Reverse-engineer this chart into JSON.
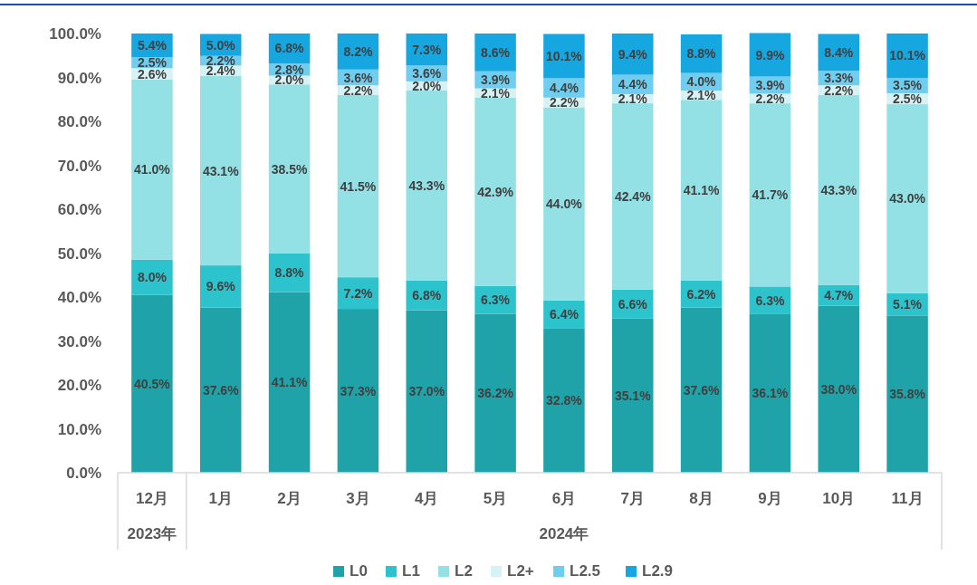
{
  "chart_data": {
    "type": "bar",
    "stacked": true,
    "legend": "bottom",
    "categories": [
      "12月",
      "1月",
      "2月",
      "3月",
      "4月",
      "5月",
      "6月",
      "7月",
      "8月",
      "9月",
      "10月",
      "11月"
    ],
    "annotations": [
      "2023年",
      "2024年"
    ],
    "ylim": [
      0,
      100
    ],
    "yticks": [
      {
        "value": 0,
        "label": "0.0%"
      },
      {
        "value": 10,
        "label": "10.0%"
      },
      {
        "value": 20,
        "label": "20.0%"
      },
      {
        "value": 30,
        "label": "30.0%"
      },
      {
        "value": 40,
        "label": "40.0%"
      },
      {
        "value": 50,
        "label": "50.0%"
      },
      {
        "value": 60,
        "label": "60.0%"
      },
      {
        "value": 70,
        "label": "70.0%"
      },
      {
        "value": 80,
        "label": "80.0%"
      },
      {
        "value": 90,
        "label": "90.0%"
      },
      {
        "value": 100,
        "label": "100.0%"
      }
    ],
    "series": [
      {
        "name": "L0",
        "color": "#1fa3a8",
        "values": [
          40.5,
          37.6,
          41.1,
          37.3,
          37.0,
          36.2,
          32.8,
          35.1,
          37.6,
          36.1,
          38.0,
          35.8
        ],
        "value_labels": [
          "40.5%",
          "37.6%",
          "41.1%",
          "37.3%",
          "37.0%",
          "36.2%",
          "32.8%",
          "35.1%",
          "37.6%",
          "36.1%",
          "38.0%",
          "35.8%"
        ]
      },
      {
        "name": "L1",
        "color": "#2cc3cc",
        "values": [
          8.0,
          9.6,
          8.8,
          7.2,
          6.8,
          6.3,
          6.4,
          6.6,
          6.2,
          6.3,
          4.7,
          5.1
        ],
        "value_labels": [
          "8.0%",
          "9.6%",
          "8.8%",
          "7.2%",
          "6.8%",
          "6.3%",
          "6.4%",
          "6.6%",
          "6.2%",
          "6.3%",
          "4.7%",
          "5.1%"
        ]
      },
      {
        "name": "L2",
        "color": "#93e1e5",
        "values": [
          41.0,
          43.1,
          38.5,
          41.5,
          43.3,
          42.9,
          44.0,
          42.4,
          41.1,
          41.7,
          43.3,
          43.0
        ],
        "value_labels": [
          "41.0%",
          "43.1%",
          "38.5%",
          "41.5%",
          "43.3%",
          "42.9%",
          "44.0%",
          "42.4%",
          "41.1%",
          "41.7%",
          "43.3%",
          "43.0%"
        ]
      },
      {
        "name": "L2+",
        "color": "#d6f2f4",
        "values": [
          2.6,
          2.4,
          2.0,
          2.2,
          2.0,
          2.1,
          2.2,
          2.1,
          2.1,
          2.2,
          2.2,
          2.5
        ],
        "value_labels": [
          "2.6%",
          "2.4%",
          "2.0%",
          "2.2%",
          "2.0%",
          "2.1%",
          "2.2%",
          "2.1%",
          "2.1%",
          "2.2%",
          "2.2%",
          "2.5%"
        ]
      },
      {
        "name": "L2.5",
        "color": "#6fcdf0",
        "values": [
          2.5,
          2.2,
          2.8,
          3.6,
          3.6,
          3.9,
          4.4,
          4.4,
          4.0,
          3.9,
          3.3,
          3.5
        ],
        "value_labels": [
          "2.5%",
          "2.2%",
          "2.8%",
          "3.6%",
          "3.6%",
          "3.9%",
          "4.4%",
          "4.4%",
          "4.0%",
          "3.9%",
          "3.3%",
          "3.5%"
        ]
      },
      {
        "name": "L2.9",
        "color": "#16a6e0",
        "values": [
          5.4,
          5.0,
          6.8,
          8.2,
          7.3,
          8.6,
          10.1,
          9.4,
          8.8,
          9.9,
          8.4,
          10.1
        ],
        "value_labels": [
          "5.4%",
          "5.0%",
          "6.8%",
          "8.2%",
          "7.3%",
          "8.6%",
          "10.1%",
          "9.4%",
          "8.8%",
          "9.9%",
          "8.4%",
          "10.1%"
        ]
      }
    ]
  }
}
